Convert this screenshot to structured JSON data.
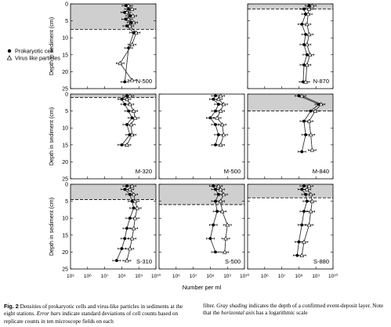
{
  "legend": {
    "prokaryotic": "Prokaryotic cell",
    "virus": "Virus like particles"
  },
  "axis": {
    "ylabel": "Depth in sediment (cm)",
    "xlabel": "Number per ml",
    "y_ticks": [
      "0",
      "5",
      "10",
      "15",
      "20",
      "25"
    ],
    "x_ticks_left": [
      "10⁵",
      "10⁶",
      "10⁷",
      "10⁸",
      "10⁹",
      "10¹⁰"
    ],
    "x_ticks_other": [
      "10⁶",
      "10⁷",
      "10⁸",
      "10⁹",
      "10¹⁰"
    ],
    "x_scale": "log",
    "x_range": [
      100000,
      10000000000
    ],
    "y_range": [
      0,
      25
    ]
  },
  "chart_data": [
    {
      "type": "line",
      "label": "N-500",
      "gray_depth": 7.5,
      "series": [
        {
          "name": "Prokaryotic cell",
          "x": [
            180000000.0,
            250000000.0,
            150000000.0,
            300000000.0,
            170000000.0,
            350000000.0,
            200000000.0,
            500000000.0,
            250000000.0,
            150000000.0
          ],
          "depth": [
            0.5,
            1.5,
            2.5,
            3.5,
            4.5,
            5.5,
            6.5,
            8.5,
            13,
            23
          ]
        },
        {
          "name": "Virus like particles",
          "x": [
            250000000.0,
            400000000.0,
            200000000.0,
            450000000.0,
            250000000.0,
            500000000.0,
            300000000.0,
            700000000.0,
            400000000.0,
            80000000.0,
            400000000.0
          ],
          "depth": [
            0.5,
            1.5,
            2.5,
            3.5,
            4.5,
            5.5,
            6.5,
            8.5,
            12,
            17.5,
            22.5
          ]
        }
      ]
    },
    {
      "type": "line",
      "label": "N-870",
      "gray_depth": 1.5,
      "series": [
        {
          "name": "Prokaryotic cell",
          "x": [
            400000000.0,
            200000000.0,
            250000000.0,
            150000000.0,
            250000000.0,
            200000000.0,
            300000000.0,
            200000000.0,
            180000000.0
          ],
          "depth": [
            0.5,
            1.5,
            3,
            6,
            9,
            12,
            15,
            18,
            23
          ]
        },
        {
          "name": "Virus like particles",
          "x": [
            600000000.0,
            400000000.0,
            350000000.0,
            300000000.0,
            400000000.0,
            300000000.0,
            450000000.0,
            300000000.0,
            250000000.0
          ],
          "depth": [
            0.5,
            1.5,
            3,
            6,
            9,
            12,
            15,
            18,
            23
          ]
        }
      ]
    },
    {
      "type": "line",
      "label": "M-320",
      "gray_depth": 1,
      "series": [
        {
          "name": "Prokaryotic cell",
          "x": [
            200000000.0,
            100000000.0,
            150000000.0,
            250000000.0,
            400000000.0,
            200000000.0,
            300000000.0,
            100000000.0
          ],
          "depth": [
            0.5,
            1.5,
            3,
            5,
            7,
            9,
            12,
            15
          ]
        },
        {
          "name": "Virus like particles",
          "x": [
            300000000.0,
            200000000.0,
            300000000.0,
            500000000.0,
            600000000.0,
            350000000.0,
            400000000.0,
            200000000.0
          ],
          "depth": [
            0.5,
            1.5,
            3,
            5,
            7,
            9,
            12,
            15
          ]
        }
      ]
    },
    {
      "type": "line",
      "label": "M-500",
      "gray_depth": null,
      "series": [
        {
          "name": "Prokaryotic cell",
          "x": [
            200000000.0,
            150000000.0,
            300000000.0,
            200000000.0,
            100000000.0,
            200000000.0,
            300000000.0,
            200000000.0
          ],
          "depth": [
            0.5,
            1.5,
            3,
            5,
            7,
            9,
            12,
            15
          ]
        },
        {
          "name": "Virus like particles",
          "x": [
            400000000.0,
            300000000.0,
            600000000.0,
            400000000.0,
            250000000.0,
            500000000.0,
            600000000.0,
            400000000.0
          ],
          "depth": [
            0.5,
            1.5,
            3,
            5,
            7,
            9,
            12,
            15
          ]
        }
      ]
    },
    {
      "type": "line",
      "label": "M-840",
      "gray_depth": 5,
      "series": [
        {
          "name": "Prokaryotic cell",
          "x": [
            100000000.0,
            1500000000.0,
            500000000.0,
            200000000.0,
            250000000.0,
            150000000.0
          ],
          "depth": [
            0.5,
            3,
            5,
            8,
            12,
            17
          ]
        },
        {
          "name": "Virus like particles",
          "x": [
            150000000.0,
            2000000000.0,
            900000000.0,
            400000000.0,
            500000000.0,
            600000000.0
          ],
          "depth": [
            0.5,
            3,
            5,
            8,
            12,
            16.5
          ]
        }
      ]
    },
    {
      "type": "line",
      "label": "S-310",
      "gray_depth": 4.5,
      "series": [
        {
          "name": "Prokaryotic cell",
          "x": [
            200000000.0,
            150000000.0,
            300000000.0,
            400000000.0,
            500000000.0,
            300000000.0,
            200000000.0,
            150000000.0,
            100000000.0,
            50000000.0
          ],
          "depth": [
            0.5,
            1.5,
            3,
            5,
            7,
            10,
            13,
            16,
            19,
            22.5
          ]
        },
        {
          "name": "Virus like particles",
          "x": [
            400000000.0,
            300000000.0,
            500000000.0,
            600000000.0,
            800000000.0,
            600000000.0,
            500000000.0,
            400000000.0,
            300000000.0,
            200000000.0
          ],
          "depth": [
            0.5,
            1.5,
            3,
            5,
            7,
            10,
            13,
            16,
            19,
            22.5
          ]
        }
      ]
    },
    {
      "type": "line",
      "label": "S-500",
      "gray_depth": 6,
      "series": [
        {
          "name": "Prokaryotic cell",
          "x": [
            150000000.0,
            200000000.0,
            300000000.0,
            200000000.0,
            250000000.0,
            150000000.0,
            100000000.0,
            200000000.0
          ],
          "depth": [
            0.5,
            1.5,
            3,
            5,
            8,
            12,
            16,
            20
          ]
        },
        {
          "name": "Virus like particles",
          "x": [
            300000000.0,
            400000000.0,
            600000000.0,
            400000000.0,
            500000000.0,
            1000000000.0,
            800000000.0,
            700000000.0
          ],
          "depth": [
            0.5,
            1.5,
            3,
            5,
            8,
            12,
            16,
            20
          ]
        }
      ]
    },
    {
      "type": "line",
      "label": "S-880",
      "gray_depth": 4,
      "series": [
        {
          "name": "Prokaryotic cell",
          "x": [
            200000000.0,
            150000000.0,
            250000000.0,
            300000000.0,
            200000000.0,
            150000000.0,
            100000000.0,
            80000000.0
          ],
          "depth": [
            0.5,
            1.5,
            3,
            5,
            8,
            12,
            17,
            21
          ]
        },
        {
          "name": "Virus like particles",
          "x": [
            400000000.0,
            300000000.0,
            500000000.0,
            600000000.0,
            500000000.0,
            400000000.0,
            200000000.0,
            150000000.0
          ],
          "depth": [
            0.5,
            1.5,
            3,
            5,
            8,
            12,
            17,
            21
          ]
        }
      ]
    }
  ],
  "caption": {
    "fig_label": "Fig. 2",
    "left": [
      {
        "t": " Densities of prokaryotic cells and virus-like particles in sediments at the eight stations. ",
        "s": "n"
      },
      {
        "t": "Error bars",
        "s": "i"
      },
      {
        "t": " indicate standard deviations of cell counts based on replicate counts in ten microscope fields on each",
        "s": "n"
      }
    ],
    "right": [
      {
        "t": "filter. ",
        "s": "n"
      },
      {
        "t": "Gray shading",
        "s": "i"
      },
      {
        "t": " indicates the depth of a confirmed event-deposit layer. Note that the ",
        "s": "n"
      },
      {
        "t": "horizontal axis",
        "s": "i"
      },
      {
        "t": " has a logarithmic scale",
        "s": "n"
      }
    ]
  }
}
